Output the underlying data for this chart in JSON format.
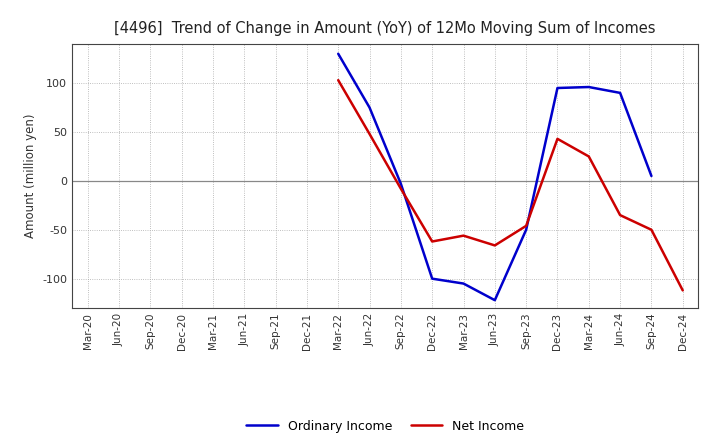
{
  "title": "[4496]  Trend of Change in Amount (YoY) of 12Mo Moving Sum of Incomes",
  "ylabel": "Amount (million yen)",
  "x_labels": [
    "Mar-20",
    "Jun-20",
    "Sep-20",
    "Dec-20",
    "Mar-21",
    "Jun-21",
    "Sep-21",
    "Dec-21",
    "Mar-22",
    "Jun-22",
    "Sep-22",
    "Dec-22",
    "Mar-23",
    "Jun-23",
    "Sep-23",
    "Dec-23",
    "Mar-24",
    "Jun-24",
    "Sep-24",
    "Dec-24"
  ],
  "ordinary_income": [
    null,
    null,
    null,
    null,
    null,
    null,
    null,
    null,
    130,
    75,
    -3,
    -100,
    -105,
    -122,
    -50,
    95,
    96,
    90,
    5,
    null
  ],
  "net_income": [
    null,
    null,
    null,
    null,
    null,
    null,
    null,
    null,
    103,
    48,
    -8,
    -62,
    -56,
    -66,
    -46,
    43,
    25,
    -35,
    -50,
    -112
  ],
  "ordinary_color": "#0000cc",
  "net_color": "#cc0000",
  "ylim": [
    -130,
    140
  ],
  "yticks": [
    -100,
    -50,
    0,
    50,
    100
  ],
  "background_color": "#ffffff",
  "grid_color": "#aaaaaa",
  "legend_ordinary": "Ordinary Income",
  "legend_net": "Net Income",
  "line_width": 1.8
}
